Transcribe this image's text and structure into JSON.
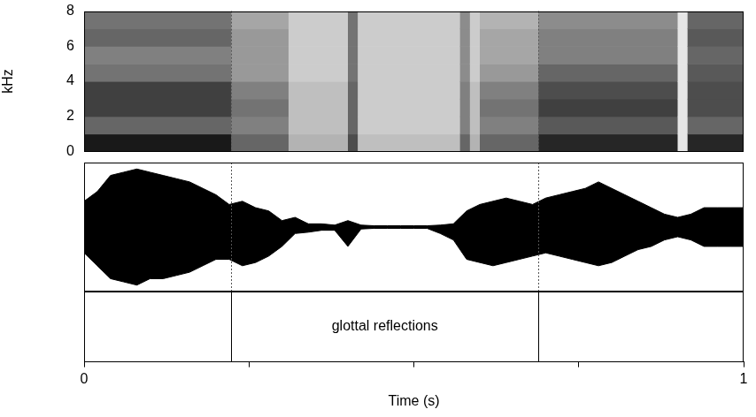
{
  "chart_data": [
    {
      "type": "heatmap",
      "ylabel": "kHz",
      "xlim": [
        0,
        1
      ],
      "ylim": [
        0,
        8
      ],
      "yticks": [
        0,
        2,
        4,
        6,
        8
      ],
      "tick_labels": "y",
      "spectrogram": {
        "segments": [
          {
            "start": 0,
            "end": 0.223,
            "levels": [
              0.9,
              0.6,
              0.75,
              0.75,
              0.55,
              0.5,
              0.6,
              0.55
            ]
          },
          {
            "start": 0.223,
            "end": 0.31,
            "levels": [
              0.6,
              0.5,
              0.55,
              0.5,
              0.4,
              0.4,
              0.4,
              0.35
            ]
          },
          {
            "start": 0.31,
            "end": 0.4,
            "levels": [
              0.3,
              0.25,
              0.25,
              0.25,
              0.2,
              0.2,
              0.2,
              0.2
            ]
          },
          {
            "start": 0.4,
            "end": 0.415,
            "levels": [
              0.7,
              0.6,
              0.6,
              0.6,
              0.55,
              0.55,
              0.55,
              0.55
            ]
          },
          {
            "start": 0.415,
            "end": 0.57,
            "levels": [
              0.25,
              0.2,
              0.2,
              0.2,
              0.2,
              0.2,
              0.2,
              0.2
            ]
          },
          {
            "start": 0.57,
            "end": 0.585,
            "levels": [
              0.6,
              0.5,
              0.5,
              0.5,
              0.45,
              0.45,
              0.45,
              0.45
            ]
          },
          {
            "start": 0.585,
            "end": 0.6,
            "levels": [
              0.3,
              0.25,
              0.25,
              0.25,
              0.2,
              0.2,
              0.2,
              0.2
            ]
          },
          {
            "start": 0.6,
            "end": 0.689,
            "levels": [
              0.6,
              0.5,
              0.55,
              0.5,
              0.4,
              0.35,
              0.35,
              0.3
            ]
          },
          {
            "start": 0.689,
            "end": 0.9,
            "levels": [
              0.85,
              0.65,
              0.75,
              0.7,
              0.6,
              0.5,
              0.5,
              0.45
            ]
          },
          {
            "start": 0.9,
            "end": 0.915,
            "levels": [
              0.1,
              0.1,
              0.1,
              0.1,
              0.1,
              0.1,
              0.1,
              0.1
            ]
          },
          {
            "start": 0.915,
            "end": 1,
            "levels": [
              0.85,
              0.6,
              0.7,
              0.7,
              0.65,
              0.6,
              0.65,
              0.6
            ]
          }
        ]
      }
    },
    {
      "type": "area",
      "xlim": [
        0,
        1
      ],
      "ylim": [
        -1,
        1
      ],
      "tick_labels": false,
      "color": "#000000",
      "x": [
        0,
        0.02,
        0.04,
        0.06,
        0.08,
        0.1,
        0.12,
        0.14,
        0.16,
        0.18,
        0.2,
        0.22,
        0.24,
        0.26,
        0.28,
        0.3,
        0.32,
        0.34,
        0.36,
        0.38,
        0.4,
        0.42,
        0.44,
        0.46,
        0.48,
        0.5,
        0.52,
        0.54,
        0.56,
        0.58,
        0.6,
        0.62,
        0.64,
        0.66,
        0.68,
        0.7,
        0.72,
        0.74,
        0.76,
        0.78,
        0.8,
        0.82,
        0.84,
        0.86,
        0.88,
        0.9,
        0.92,
        0.94,
        0.96,
        0.98,
        1
      ],
      "upper": [
        0.4,
        0.55,
        0.8,
        0.85,
        0.9,
        0.85,
        0.8,
        0.75,
        0.7,
        0.6,
        0.5,
        0.35,
        0.4,
        0.3,
        0.25,
        0.1,
        0.15,
        0.05,
        0.05,
        0.03,
        0.1,
        0.03,
        0.02,
        0.02,
        0.02,
        0.02,
        0.02,
        0.03,
        0.05,
        0.25,
        0.35,
        0.4,
        0.45,
        0.4,
        0.35,
        0.45,
        0.5,
        0.55,
        0.6,
        0.7,
        0.6,
        0.5,
        0.4,
        0.3,
        0.2,
        0.15,
        0.2,
        0.3,
        0.3,
        0.3,
        0.3
      ],
      "lower": [
        -0.4,
        -0.6,
        -0.8,
        -0.85,
        -0.9,
        -0.8,
        -0.8,
        -0.75,
        -0.7,
        -0.6,
        -0.5,
        -0.5,
        -0.6,
        -0.55,
        -0.45,
        -0.3,
        -0.1,
        -0.08,
        -0.05,
        -0.05,
        -0.3,
        -0.03,
        -0.02,
        -0.02,
        -0.02,
        -0.02,
        -0.02,
        -0.1,
        -0.2,
        -0.5,
        -0.55,
        -0.6,
        -0.55,
        -0.5,
        -0.45,
        -0.4,
        -0.45,
        -0.5,
        -0.55,
        -0.6,
        -0.55,
        -0.45,
        -0.35,
        -0.3,
        -0.2,
        -0.15,
        -0.2,
        -0.3,
        -0.3,
        -0.3,
        -0.3
      ]
    },
    {
      "type": "tier",
      "xlabel": "Time (s)",
      "xlim": [
        0,
        1
      ],
      "xticks": [
        0,
        1
      ],
      "x_minor_ticks": [
        0.25,
        0.5,
        0.75
      ],
      "tick_labels": "x",
      "intervals": [
        {
          "start": 0.223,
          "end": 0.689,
          "label": "glottal reflections"
        }
      ]
    }
  ]
}
